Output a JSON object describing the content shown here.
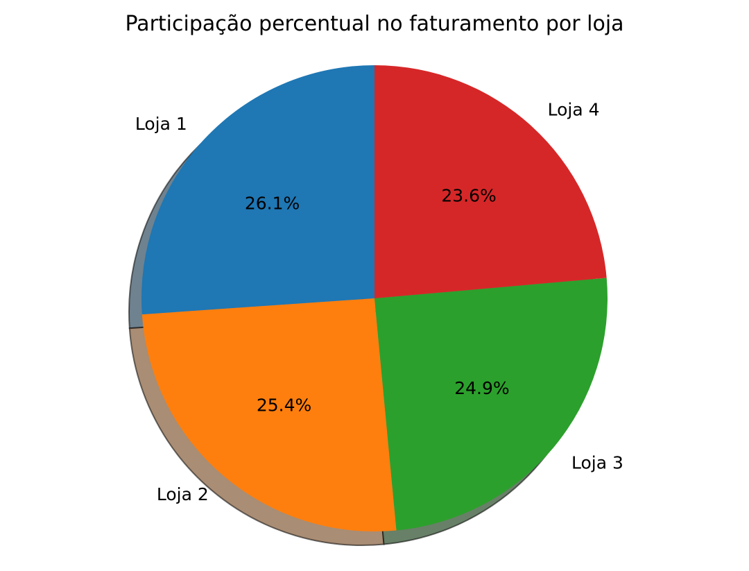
{
  "chart_data": {
    "type": "pie",
    "title": "Participação percentual no faturamento por loja",
    "categories": [
      "Loja 1",
      "Loja 2",
      "Loja 3",
      "Loja 4"
    ],
    "values": [
      26.1,
      25.4,
      24.9,
      23.6
    ],
    "value_labels": [
      "26.1%",
      "25.4%",
      "24.9%",
      "23.6%"
    ],
    "colors": [
      "#1f77b4",
      "#ff7f0e",
      "#2ca02c",
      "#d62728"
    ],
    "start_angle_deg": 90,
    "direction": "counterclockwise",
    "shadow": true,
    "legend": "none"
  }
}
